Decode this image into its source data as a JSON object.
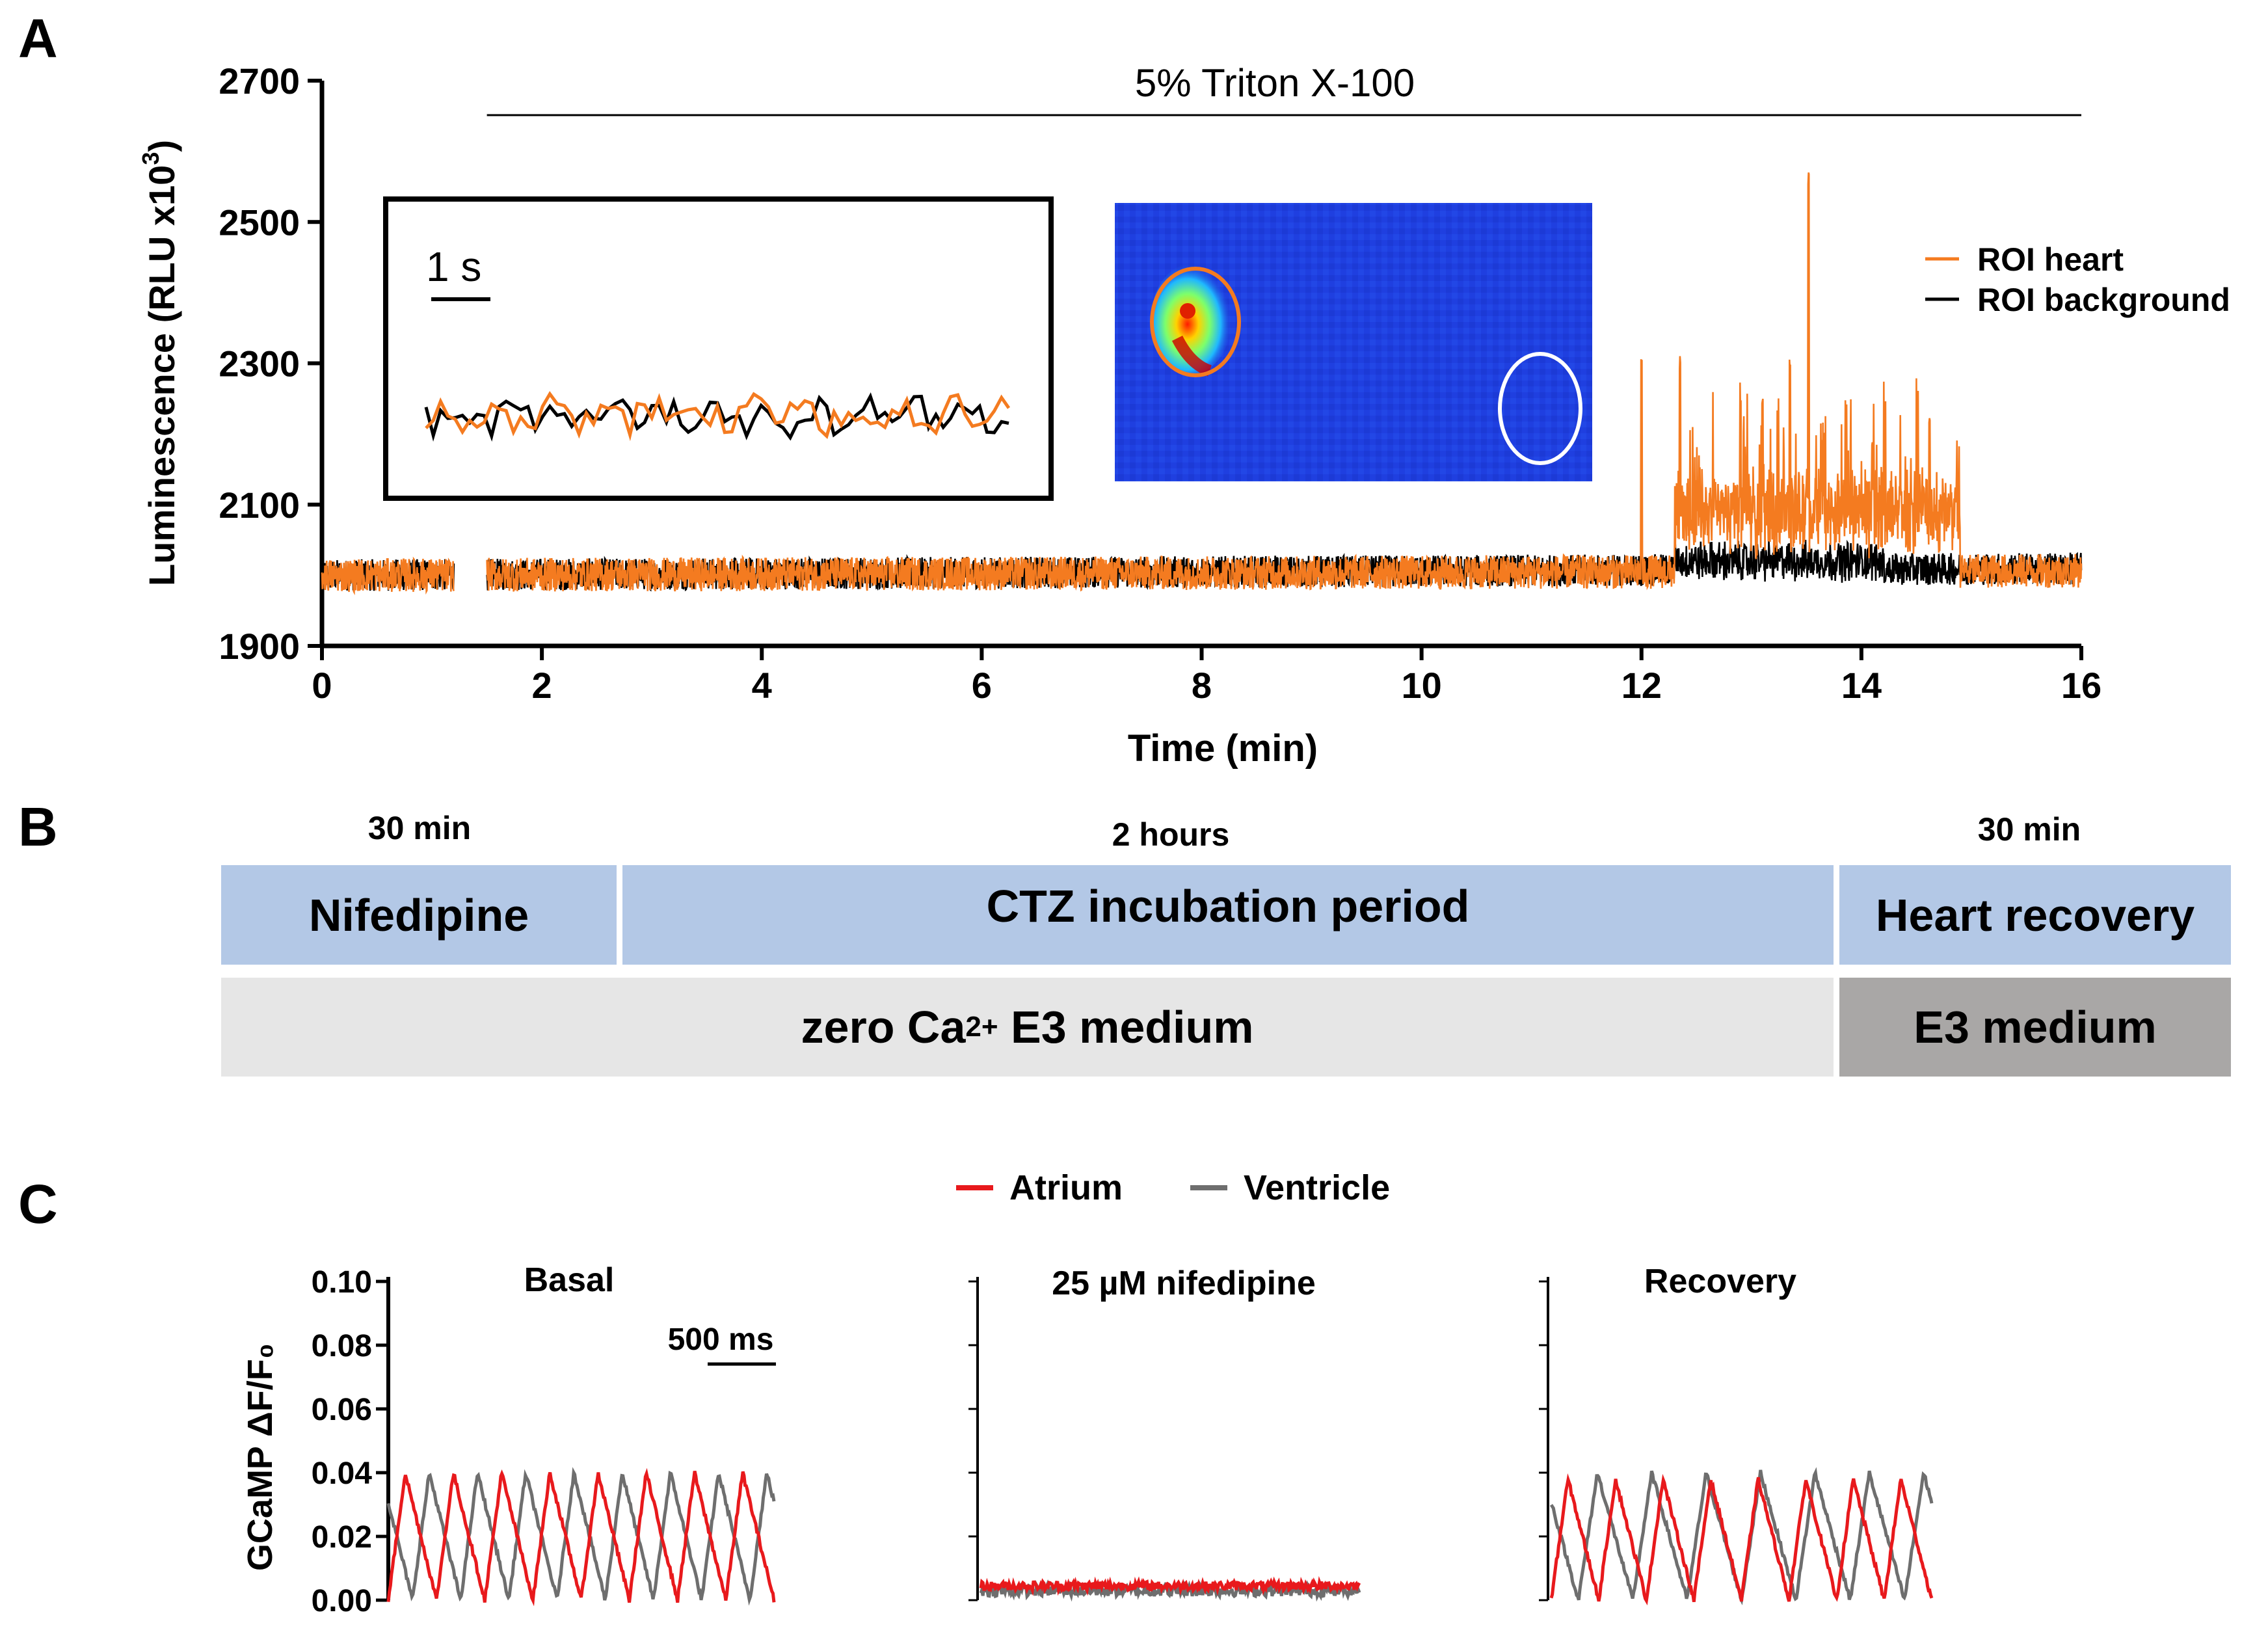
{
  "panels": {
    "a": "A",
    "b": "B",
    "c": "C"
  },
  "colors": {
    "heart": "#f47b20",
    "background": "#000000",
    "atrium": "#e8191c",
    "ventricle": "#6e6e6e",
    "blue_box": "#b3c8e6",
    "light_box": "#e6e6e6",
    "dark_box": "#a9a7a6"
  },
  "chart_data": [
    {
      "id": "A",
      "type": "line",
      "title": "5% Triton X-100",
      "treatment_bar_range": [
        1.5,
        16
      ],
      "xlabel": "Time (min)",
      "ylabel": "Luminescence (RLU x10",
      "ylabel_sup": "3",
      "ylabel_close": ")",
      "xlim": [
        0,
        16
      ],
      "ylim": [
        1900,
        2700
      ],
      "xticks": [
        0,
        2,
        4,
        6,
        8,
        10,
        12,
        14,
        16
      ],
      "yticks": [
        1900,
        2100,
        2300,
        2500,
        2700
      ],
      "series": [
        {
          "name": "ROI heart",
          "color": "#f47b20",
          "baseline": 2000,
          "segments": [
            [
              0,
              1.2
            ],
            [
              1.5,
              16
            ]
          ],
          "peaks": [
            [
              12.0,
              2290
            ],
            [
              12.35,
              2290
            ],
            [
              12.9,
              2250
            ],
            [
              13.1,
              2250
            ],
            [
              13.35,
              2310
            ],
            [
              13.52,
              2560
            ],
            [
              14.1,
              2180
            ],
            [
              14.62,
              2210
            ]
          ]
        },
        {
          "name": "ROI background",
          "color": "#000000",
          "baseline": 2000,
          "segments": [
            [
              0,
              1.2
            ],
            [
              1.5,
              16
            ]
          ]
        }
      ],
      "inset": {
        "scalebar_label": "1 s",
        "series_names": [
          "ROI heart",
          "ROI background"
        ]
      },
      "image_inset": {
        "description": "luminescence image with heart ROI (orange) and background ROI (white)"
      }
    },
    {
      "id": "C",
      "type": "line",
      "ylabel": "GCaMP ΔF/F₀",
      "ylim": [
        0.0,
        0.1
      ],
      "yticks": [
        "0.00",
        "0.02",
        "0.04",
        "0.06",
        "0.08",
        "0.10"
      ],
      "legend": [
        "Atrium",
        "Ventricle"
      ],
      "scalebar_label": "500 ms",
      "subplots": [
        {
          "title": "Basal",
          "atrium": {
            "min": 0.0,
            "max": 0.04,
            "cycles": 8
          },
          "ventricle": {
            "min": 0.0,
            "max": 0.04,
            "cycles": 8
          }
        },
        {
          "title": "25 µM nifedipine",
          "atrium": {
            "min": 0.003,
            "max": 0.006,
            "flat": true
          },
          "ventricle": {
            "min": 0.001,
            "max": 0.005,
            "flat": true
          }
        },
        {
          "title": "Recovery",
          "atrium": {
            "min": 0.0,
            "max": 0.038,
            "cycles": 8
          },
          "ventricle": {
            "min": 0.0,
            "max": 0.04,
            "cycles": 7
          }
        }
      ]
    }
  ],
  "timeline": {
    "durations": {
      "nifedipine": "30 min",
      "ctz": "2 hours",
      "recovery": "30 min"
    },
    "top": {
      "nifedipine": "Nifedipine",
      "ctz": "CTZ incubation period",
      "recovery": "Heart recovery"
    },
    "bottom": {
      "zero_ca_pre": "zero Ca",
      "zero_ca_sup": "2+",
      "zero_ca_post": " E3 medium",
      "e3": "E3 medium"
    }
  }
}
